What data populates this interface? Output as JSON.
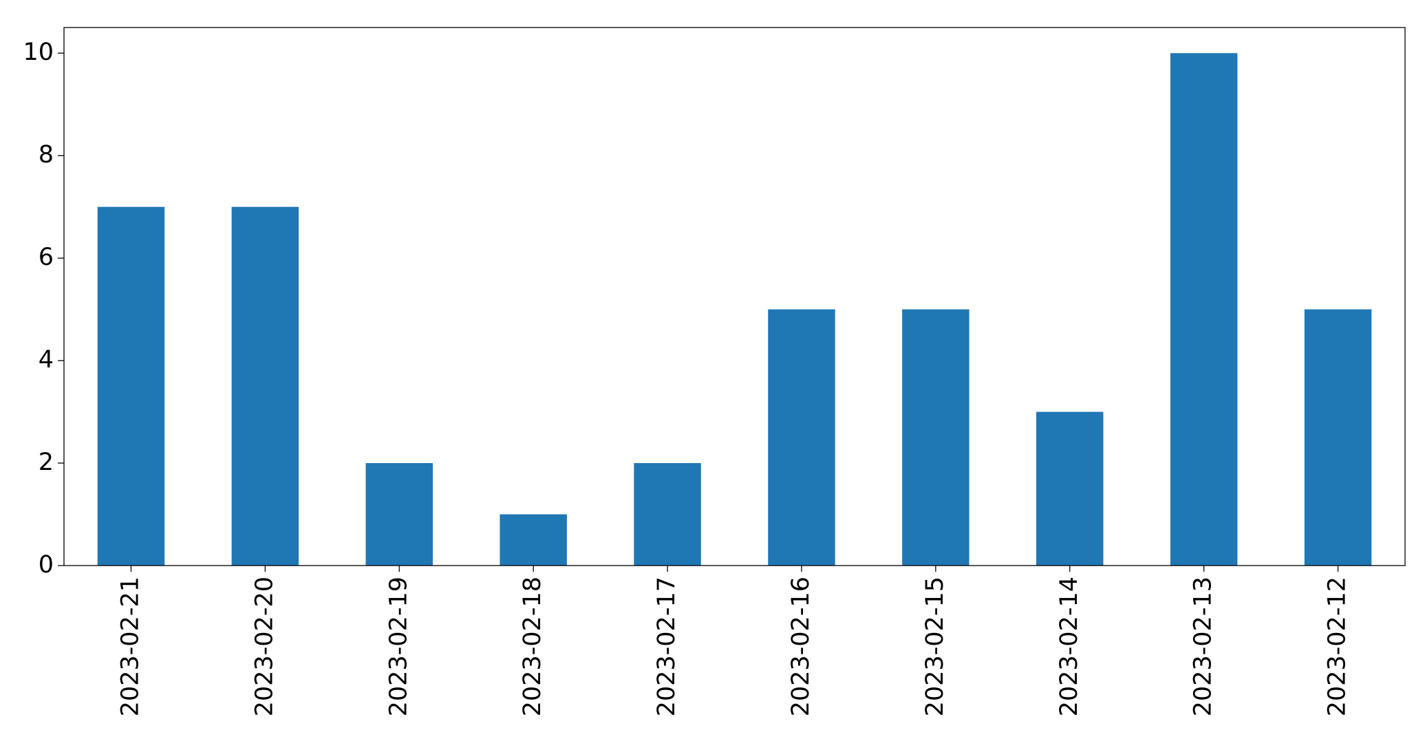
{
  "chart_data": {
    "type": "bar",
    "categories": [
      "2023-02-21",
      "2023-02-20",
      "2023-02-19",
      "2023-02-18",
      "2023-02-17",
      "2023-02-16",
      "2023-02-15",
      "2023-02-14",
      "2023-02-13",
      "2023-02-12"
    ],
    "values": [
      7,
      7,
      2,
      1,
      2,
      5,
      5,
      3,
      10,
      5
    ],
    "color": "#1f77b4",
    "ylim": [
      0,
      10.5
    ],
    "yticks": [
      0,
      2,
      4,
      6,
      8,
      10
    ],
    "grid": false
  }
}
